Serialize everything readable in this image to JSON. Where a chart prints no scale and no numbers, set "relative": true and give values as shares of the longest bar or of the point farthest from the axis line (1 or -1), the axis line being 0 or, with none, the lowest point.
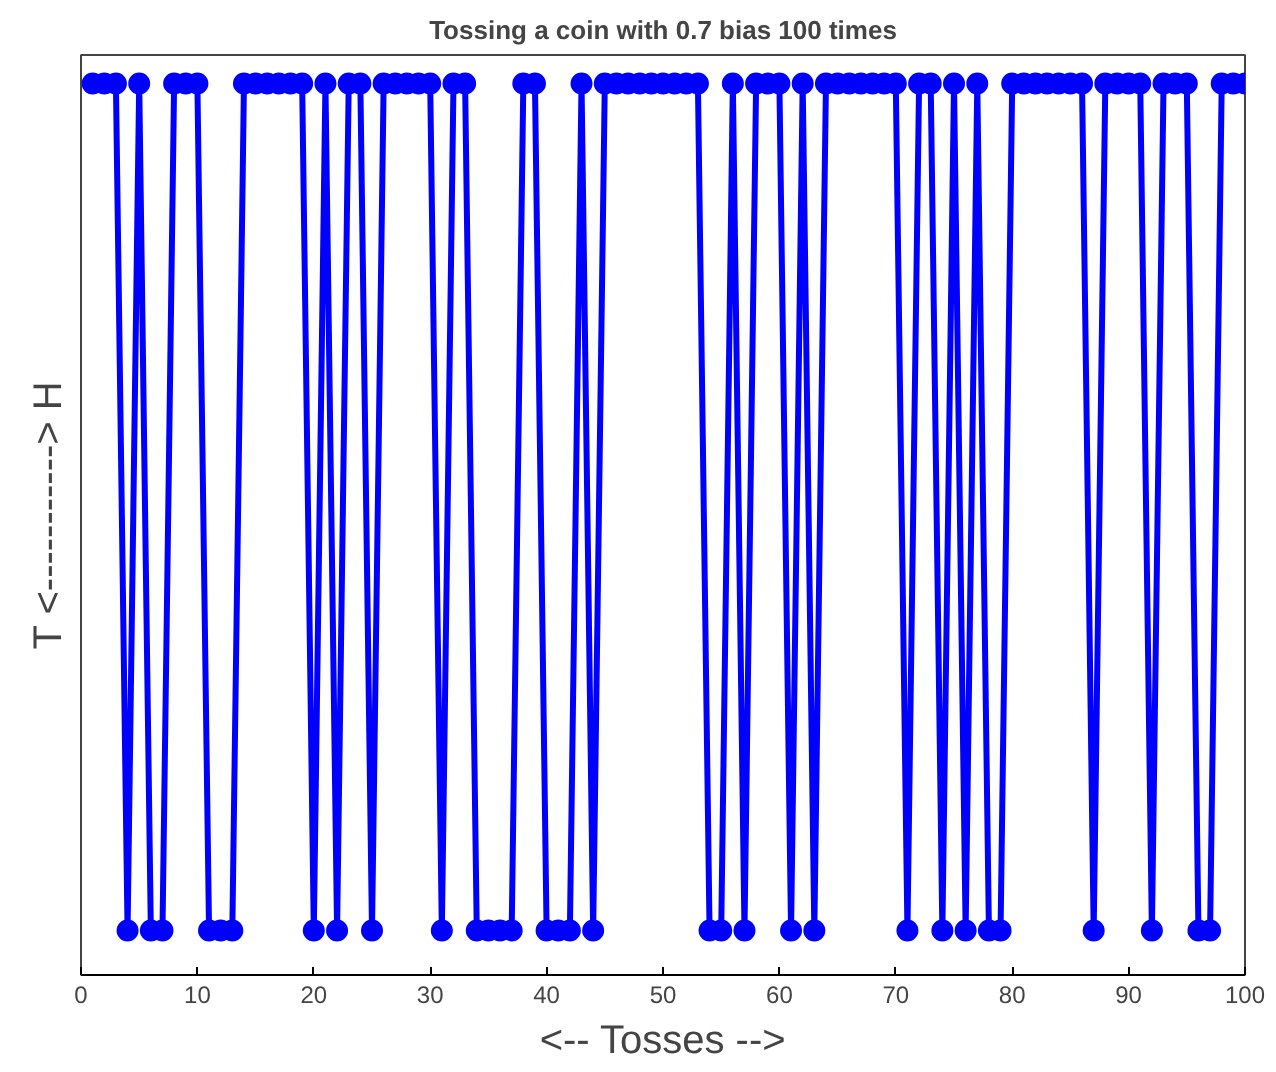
{
  "chart_data": {
    "type": "line",
    "title": "Tossing a coin with 0.7 bias 100 times",
    "xlabel": "<-- Tosses -->",
    "ylabel": "T <-----------> H",
    "x": [
      1,
      2,
      3,
      4,
      5,
      6,
      7,
      8,
      9,
      10,
      11,
      12,
      13,
      14,
      15,
      16,
      17,
      18,
      19,
      20,
      21,
      22,
      23,
      24,
      25,
      26,
      27,
      28,
      29,
      30,
      31,
      32,
      33,
      34,
      35,
      36,
      37,
      38,
      39,
      40,
      41,
      42,
      43,
      44,
      45,
      46,
      47,
      48,
      49,
      50,
      51,
      52,
      53,
      54,
      55,
      56,
      57,
      58,
      59,
      60,
      61,
      62,
      63,
      64,
      65,
      66,
      67,
      68,
      69,
      70,
      71,
      72,
      73,
      74,
      75,
      76,
      77,
      78,
      79,
      80,
      81,
      82,
      83,
      84,
      85,
      86,
      87,
      88,
      89,
      90,
      91,
      92,
      93,
      94,
      95,
      96,
      97,
      98,
      99,
      100
    ],
    "series": [
      {
        "color": "#0000ff",
        "values": [
          1,
          1,
          1,
          0.05,
          1,
          0.05,
          0.05,
          1,
          1,
          1,
          0.05,
          0.05,
          0.05,
          1,
          1,
          1,
          1,
          1,
          1,
          0.05,
          1,
          0.05,
          1,
          1,
          0.05,
          1,
          1,
          1,
          1,
          1,
          0.05,
          1,
          1,
          0.05,
          0.05,
          0.05,
          0.05,
          1,
          1,
          0.05,
          0.05,
          0.05,
          1,
          0.05,
          1,
          1,
          1,
          1,
          1,
          1,
          1,
          1,
          1,
          0.05,
          0.05,
          1,
          0.05,
          1,
          1,
          1,
          0.05,
          1,
          0.05,
          1,
          1,
          1,
          1,
          1,
          1,
          1,
          0.05,
          1,
          1,
          0.05,
          1,
          0.05,
          1,
          0.05,
          0.05,
          1,
          1,
          1,
          1,
          1,
          1,
          1,
          0.05,
          1,
          1,
          1,
          1,
          0.05,
          1,
          1,
          1,
          0.05,
          0.05,
          1,
          1,
          1
        ]
      }
    ],
    "relative": true,
    "xlim": [
      0,
      100
    ],
    "xticks": [
      0,
      10,
      20,
      30,
      40,
      50,
      60,
      70,
      80,
      90,
      100
    ],
    "tick_labels": "x",
    "grid": false,
    "marker": "circle",
    "line_style": "solid"
  }
}
